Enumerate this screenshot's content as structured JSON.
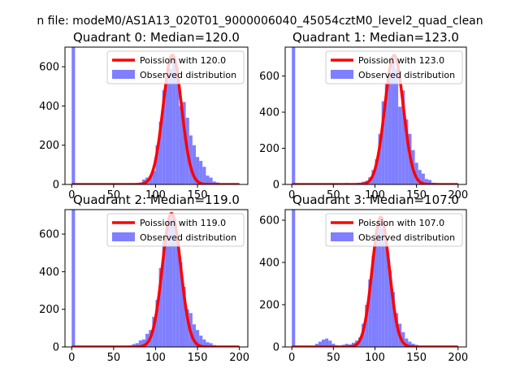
{
  "figure": {
    "suptitle": "n file: modeM0/AS1A13_020T01_9000006040_45054cztM0_level2_quad_clean"
  },
  "colors": {
    "hist": "#7f7fff",
    "poisson": "#ff0000",
    "axes": "#000000"
  },
  "chart_data": [
    {
      "type": "bar",
      "title": "Quadrant 0: Median=120.0",
      "xlim": [
        -8,
        210
      ],
      "ylim": [
        0,
        700
      ],
      "xticks": [
        0,
        50,
        100,
        150
      ],
      "yticks": [
        0,
        200,
        400,
        600
      ],
      "legend_position": "top-right",
      "bin_width": 4,
      "series": [
        {
          "name": "Observed distribution",
          "x": [
            0,
            4,
            8,
            12,
            16,
            20,
            24,
            28,
            32,
            36,
            40,
            44,
            48,
            52,
            56,
            60,
            64,
            68,
            72,
            76,
            80,
            84,
            88,
            92,
            96,
            100,
            104,
            108,
            112,
            116,
            120,
            124,
            128,
            132,
            136,
            140,
            144,
            148,
            152,
            156,
            160,
            164,
            168,
            172,
            176,
            180,
            184,
            188,
            192,
            196,
            200
          ],
          "values": [
            700,
            3,
            2,
            2,
            2,
            2,
            3,
            2,
            2,
            2,
            3,
            2,
            2,
            3,
            2,
            2,
            2,
            4,
            4,
            6,
            10,
            25,
            35,
            45,
            70,
            200,
            320,
            480,
            570,
            590,
            650,
            600,
            400,
            420,
            340,
            250,
            200,
            140,
            120,
            90,
            45,
            35,
            15,
            10,
            6,
            4,
            2,
            2,
            1,
            1,
            0
          ]
        },
        {
          "name": "Poission with 120.0",
          "mean": 120.0,
          "peak": 660
        }
      ]
    },
    {
      "type": "bar",
      "title": "Quadrant 1: Median=123.0",
      "xlim": [
        -8,
        210
      ],
      "ylim": [
        0,
        760
      ],
      "xticks": [
        0,
        50,
        100,
        150,
        200
      ],
      "yticks": [
        0,
        200,
        400,
        600
      ],
      "legend_position": "top-right",
      "bin_width": 4,
      "series": [
        {
          "name": "Observed distribution",
          "x": [
            0,
            4,
            8,
            12,
            16,
            20,
            24,
            28,
            32,
            36,
            40,
            44,
            48,
            52,
            56,
            60,
            64,
            68,
            72,
            76,
            80,
            84,
            88,
            92,
            96,
            100,
            104,
            108,
            112,
            116,
            120,
            124,
            128,
            132,
            136,
            140,
            144,
            148,
            152,
            156,
            160,
            164,
            168,
            172,
            176,
            180,
            184,
            188,
            192,
            196,
            200
          ],
          "values": [
            760,
            2,
            2,
            2,
            2,
            2,
            2,
            2,
            2,
            2,
            2,
            2,
            2,
            3,
            3,
            4,
            8,
            6,
            4,
            8,
            10,
            15,
            20,
            40,
            80,
            140,
            280,
            460,
            560,
            620,
            680,
            640,
            430,
            520,
            360,
            280,
            190,
            120,
            80,
            60,
            30,
            25,
            10,
            8,
            5,
            3,
            2,
            2,
            1,
            1,
            1
          ]
        },
        {
          "name": "Poission with 123.0",
          "mean": 123.0,
          "peak": 715
        }
      ]
    },
    {
      "type": "bar",
      "title": "Quadrant 2: Median=119.0",
      "xlim": [
        -8,
        210
      ],
      "ylim": [
        0,
        730
      ],
      "xticks": [
        0,
        50,
        100,
        150,
        200
      ],
      "yticks": [
        0,
        200,
        400,
        600
      ],
      "legend_position": "top-right",
      "bin_width": 4,
      "series": [
        {
          "name": "Observed distribution",
          "x": [
            0,
            4,
            8,
            12,
            16,
            20,
            24,
            28,
            32,
            36,
            40,
            44,
            48,
            52,
            56,
            60,
            64,
            68,
            72,
            76,
            80,
            84,
            88,
            92,
            96,
            100,
            104,
            108,
            112,
            116,
            120,
            124,
            128,
            132,
            136,
            140,
            144,
            148,
            152,
            156,
            160,
            164,
            168,
            172,
            176,
            180,
            184,
            188,
            192,
            196,
            200
          ],
          "values": [
            730,
            2,
            2,
            2,
            2,
            2,
            2,
            2,
            2,
            2,
            2,
            2,
            2,
            3,
            3,
            4,
            6,
            8,
            15,
            20,
            35,
            40,
            70,
            90,
            160,
            250,
            420,
            560,
            660,
            700,
            680,
            560,
            450,
            320,
            200,
            180,
            120,
            90,
            60,
            40,
            25,
            20,
            10,
            5,
            3,
            2,
            2,
            1,
            1,
            1,
            0
          ]
        },
        {
          "name": "Poission with 119.0",
          "mean": 119.0,
          "peak": 710
        }
      ]
    },
    {
      "type": "bar",
      "title": "Quadrant 3: Median=107.0",
      "xlim": [
        -8,
        210
      ],
      "ylim": [
        0,
        650
      ],
      "xticks": [
        0,
        50,
        100,
        150,
        200
      ],
      "yticks": [
        0,
        200,
        400,
        600
      ],
      "legend_position": "top-right",
      "bin_width": 4,
      "series": [
        {
          "name": "Observed distribution",
          "x": [
            0,
            4,
            8,
            12,
            16,
            20,
            24,
            28,
            32,
            36,
            40,
            44,
            48,
            52,
            56,
            60,
            64,
            68,
            72,
            76,
            80,
            84,
            88,
            92,
            96,
            100,
            104,
            108,
            112,
            116,
            120,
            124,
            128,
            132,
            136,
            140,
            144,
            148,
            152,
            156,
            160,
            164,
            168,
            172,
            176,
            180,
            184,
            188,
            192,
            196,
            200
          ],
          "values": [
            650,
            2,
            2,
            2,
            2,
            3,
            5,
            15,
            25,
            35,
            40,
            30,
            15,
            8,
            5,
            10,
            15,
            12,
            20,
            30,
            45,
            110,
            200,
            320,
            430,
            560,
            610,
            560,
            480,
            360,
            260,
            160,
            110,
            70,
            40,
            25,
            15,
            10,
            5,
            3,
            2,
            2,
            1,
            1,
            1,
            1,
            0,
            0,
            0,
            0,
            0
          ]
        },
        {
          "name": "Poission with 107.0",
          "mean": 107.0,
          "peak": 615
        }
      ]
    }
  ]
}
